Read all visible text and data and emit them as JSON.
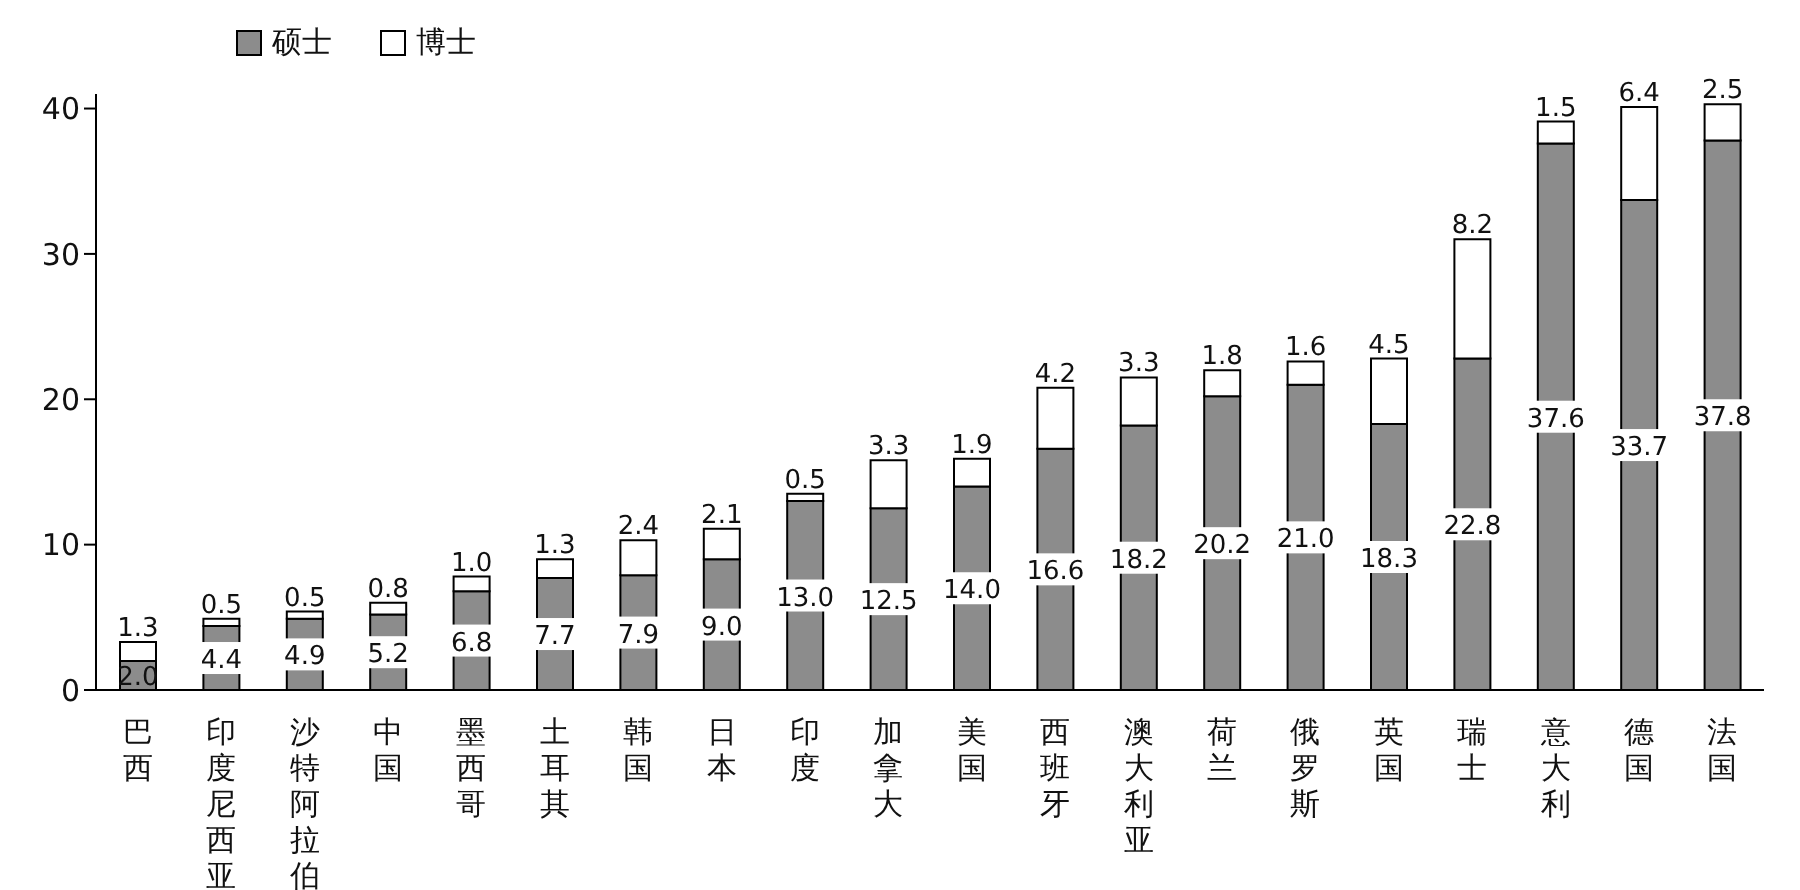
{
  "chart_data": {
    "type": "bar",
    "stacked": true,
    "categories": [
      "巴西",
      "印度尼西亚",
      "沙特阿拉伯",
      "中国",
      "墨西哥",
      "土耳其",
      "韩国",
      "日本",
      "印度",
      "加拿大",
      "美国",
      "西班牙",
      "澳大利亚",
      "荷兰",
      "俄罗斯",
      "英国",
      "瑞士",
      "意大利",
      "德国",
      "法国"
    ],
    "series": [
      {
        "name": "硕士",
        "color": "#8c8c8c",
        "values": [
          2.0,
          4.4,
          4.9,
          5.2,
          6.8,
          7.7,
          7.9,
          9.0,
          13.0,
          12.5,
          14.0,
          16.6,
          18.2,
          20.2,
          21.0,
          18.3,
          22.8,
          37.6,
          33.7,
          37.8
        ],
        "value_labels": [
          "2.0",
          "4.4",
          "4.9",
          "5.2",
          "6.8",
          "7.7",
          "7.9",
          "9.0",
          "13.0",
          "12.5",
          "14.0",
          "16.6",
          "18.2",
          "20.2",
          "21.0",
          "18.3",
          "22.8",
          "37.6",
          "33.7",
          "37.8"
        ]
      },
      {
        "name": "博士",
        "color": "#ffffff",
        "values": [
          1.3,
          0.5,
          0.5,
          0.8,
          1.0,
          1.3,
          2.4,
          2.1,
          0.5,
          3.3,
          1.9,
          4.2,
          3.3,
          1.8,
          1.6,
          4.5,
          8.2,
          1.5,
          6.4,
          2.5
        ],
        "value_labels": [
          "1.3",
          "0.5",
          "0.5",
          "0.8",
          "1.0",
          "1.3",
          "2.4",
          "2.1",
          "0.5",
          "3.3",
          "1.9",
          "4.2",
          "3.3",
          "1.8",
          "1.6",
          "4.5",
          "8.2",
          "1.5",
          "6.4",
          "2.5"
        ]
      }
    ],
    "ylim": [
      0,
      41
    ],
    "yticks": [
      0,
      10,
      20,
      30,
      40
    ],
    "legend": "top left",
    "grid": false
  }
}
